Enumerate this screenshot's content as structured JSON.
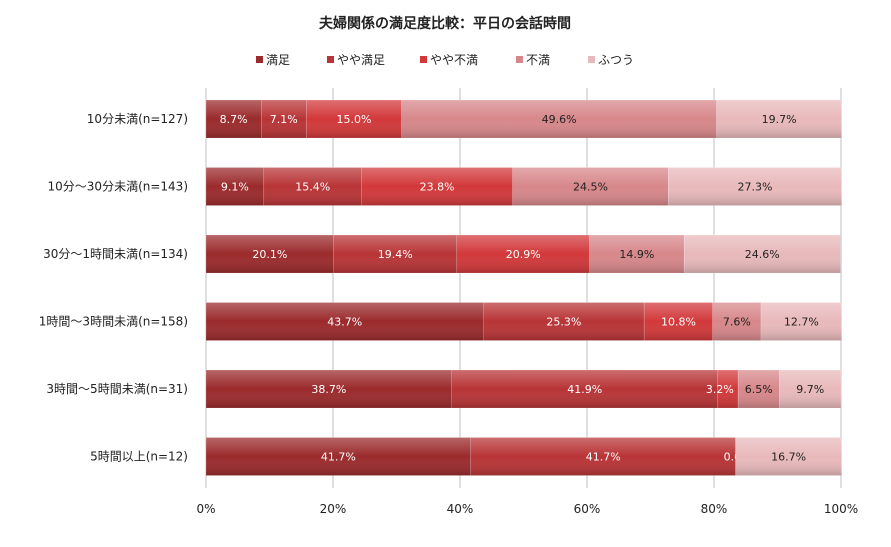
{
  "chart_data": {
    "type": "bar",
    "orientation": "horizontal",
    "stacked": "percent",
    "title": "夫婦関係の満足度比較：平日の会話時間",
    "legend_position": "top",
    "categories": [
      "10分未満(n=127)",
      "10分～30分未満(n=143)",
      "30分～1時間未満(n=134)",
      "1時間～3時間未満(n=158)",
      "3時間～5時間未満(n=31)",
      "5時間以上(n=12)"
    ],
    "series": [
      {
        "name": "満足",
        "color": "#9b2a2c",
        "values": [
          8.7,
          9.1,
          20.1,
          43.7,
          38.7,
          41.7
        ],
        "labels": [
          "8.7%",
          "9.1%",
          "20.1%",
          "43.7%",
          "38.7%",
          "41.7%"
        ]
      },
      {
        "name": "やや満足",
        "color": "#b83436",
        "values": [
          7.1,
          15.4,
          19.4,
          25.3,
          41.9,
          41.7
        ],
        "labels": [
          "7.1%",
          "15.4%",
          "19.4%",
          "25.3%",
          "41.9%",
          "41.7%"
        ]
      },
      {
        "name": "やや不満",
        "color": "#d2383a",
        "values": [
          15.0,
          23.8,
          20.9,
          10.8,
          3.2,
          0.0
        ],
        "labels": [
          "15.0%",
          "23.8%",
          "20.9%",
          "10.8%",
          "3.2%",
          "0.0%"
        ]
      },
      {
        "name": "不満",
        "color": "#d7878a",
        "values": [
          49.6,
          24.5,
          14.9,
          7.6,
          6.5,
          0.0
        ],
        "labels": [
          "49.6%",
          "24.5%",
          "14.9%",
          "7.6%",
          "6.5%",
          ""
        ]
      },
      {
        "name": "ふつう",
        "color": "#e8b9bb",
        "values": [
          19.7,
          27.3,
          24.6,
          12.7,
          9.7,
          16.7
        ],
        "labels": [
          "19.7%",
          "27.3%",
          "24.6%",
          "12.7%",
          "9.7%",
          "16.7%"
        ]
      }
    ],
    "xlim": [
      0,
      100
    ],
    "x_ticks": [
      "0%",
      "20%",
      "40%",
      "60%",
      "80%",
      "100%"
    ],
    "grid": true
  }
}
